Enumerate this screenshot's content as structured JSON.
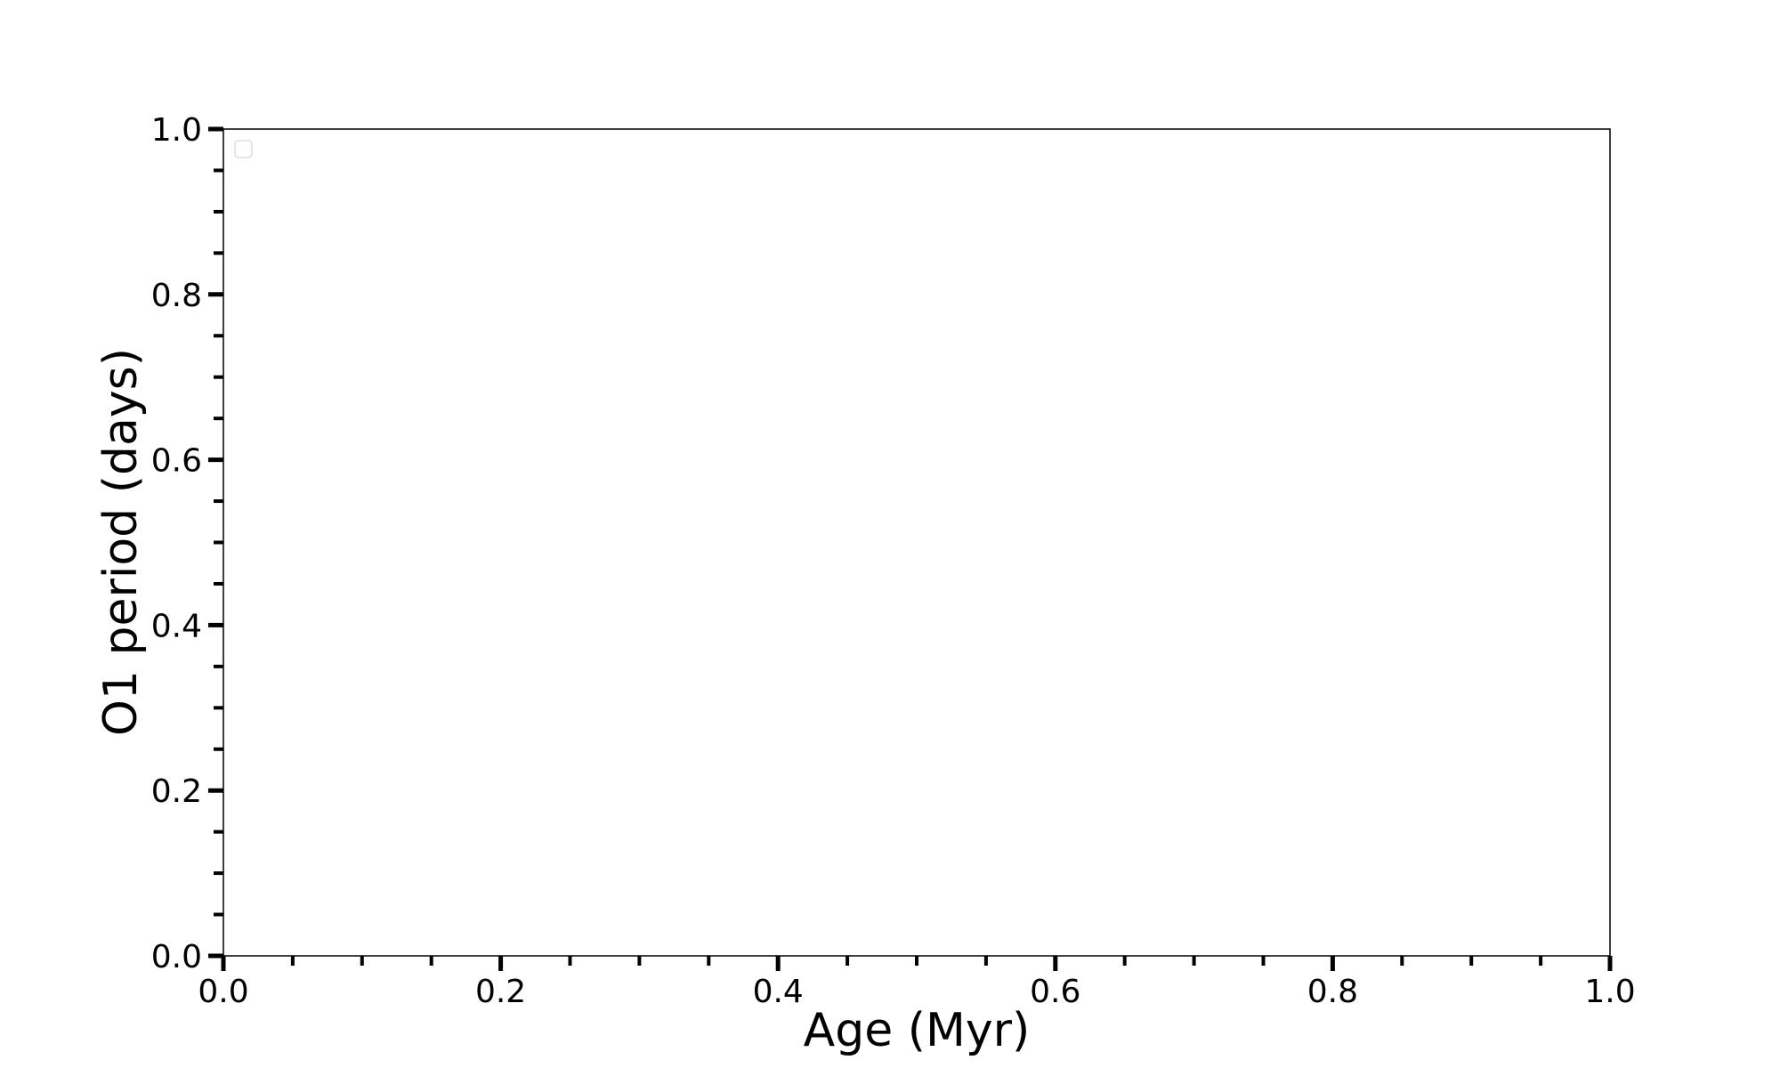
{
  "chart_data": {
    "type": "scatter",
    "title": "",
    "xlabel": "Age (Myr)",
    "ylabel": "O1 period (days)",
    "xlim": [
      0.0,
      1.0
    ],
    "ylim": [
      0.0,
      1.0
    ],
    "xticks": [
      "0.0",
      "0.2",
      "0.4",
      "0.6",
      "0.8",
      "1.0"
    ],
    "yticks": [
      "0.0",
      "0.2",
      "0.4",
      "0.6",
      "0.8",
      "1.0"
    ],
    "minor_tick_step": 0.05,
    "grid": false,
    "legend": {
      "placement": "top-left",
      "entries": []
    },
    "series": []
  }
}
